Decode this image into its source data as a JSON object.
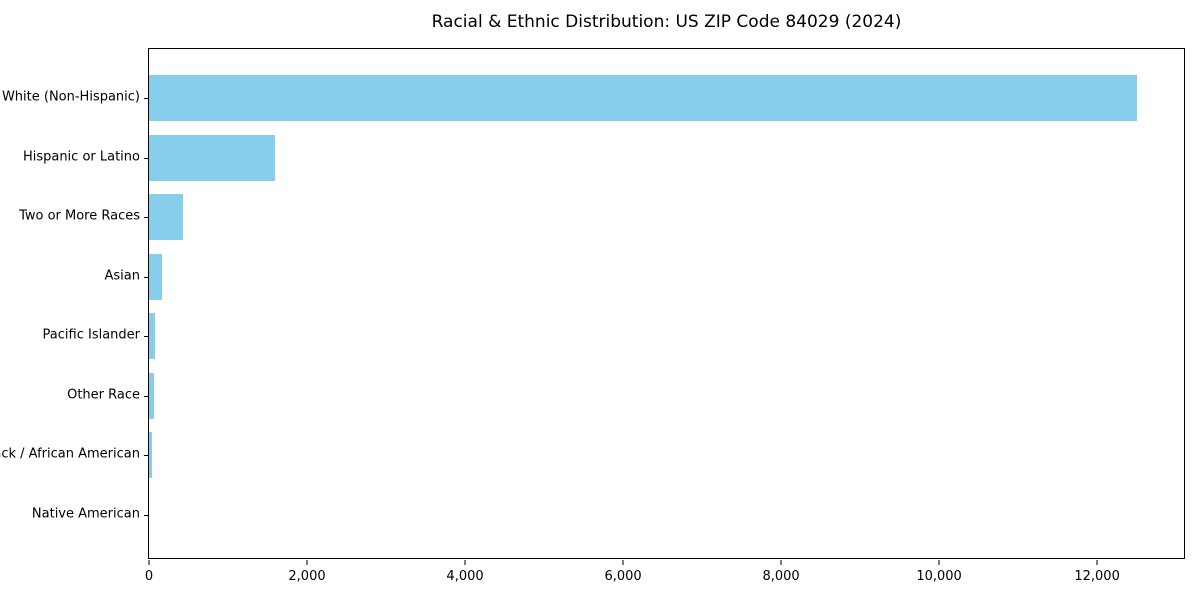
{
  "chart_data": {
    "type": "bar",
    "orientation": "horizontal",
    "title": "Racial & Ethnic Distribution: US ZIP Code 84029 (2024)",
    "categories": [
      "White (Non-Hispanic)",
      "Hispanic or Latino",
      "Two or More Races",
      "Asian",
      "Pacific Islander",
      "Other Race",
      "Black / African American",
      "Native American"
    ],
    "values": [
      12500,
      1600,
      430,
      165,
      75,
      65,
      40,
      0
    ],
    "xlabel": "",
    "ylabel": "",
    "xlim": [
      0,
      13125
    ],
    "xticks": [
      {
        "value": 0,
        "label": "0"
      },
      {
        "value": 2000,
        "label": "2,000"
      },
      {
        "value": 4000,
        "label": "4,000"
      },
      {
        "value": 6000,
        "label": "6,000"
      },
      {
        "value": 8000,
        "label": "8,000"
      },
      {
        "value": 10000,
        "label": "10,000"
      },
      {
        "value": 12000,
        "label": "12,000"
      }
    ],
    "bar_color": "#87CEEB",
    "grid": false,
    "legend": null
  }
}
